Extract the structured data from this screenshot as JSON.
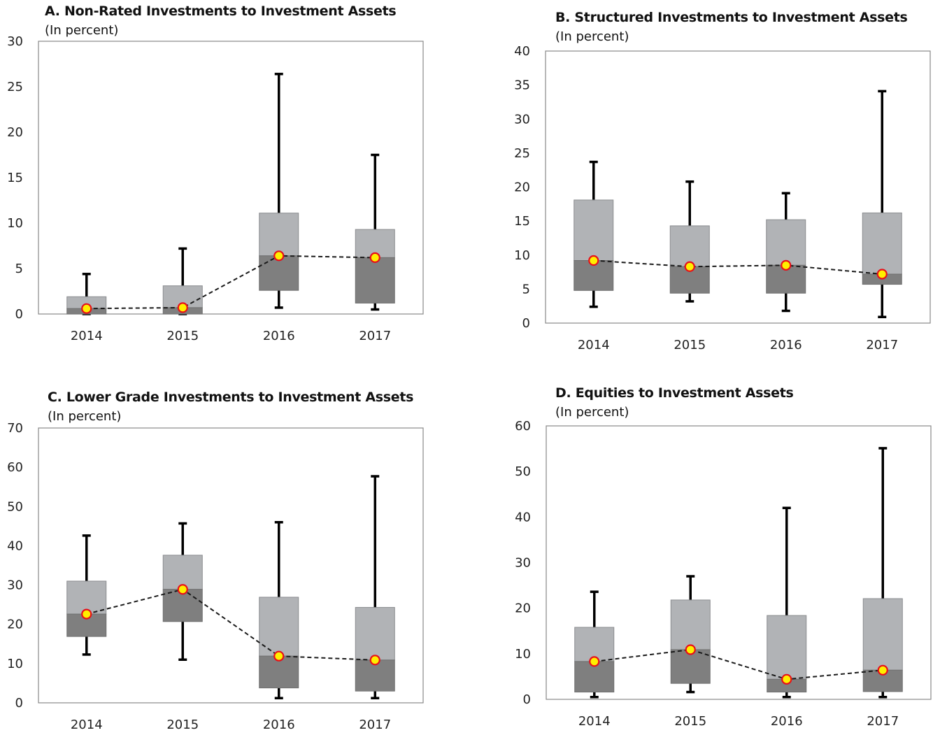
{
  "colors": {
    "upper_box": "#b1b3b6",
    "lower_box": "#7f7f7f",
    "whisker": "#000000",
    "median_fill": "#ffef00",
    "median_stroke": "#e8101a",
    "median_line": "#1a1a1a",
    "frame": "#888888"
  },
  "chart_data": [
    {
      "type": "box",
      "title": "A. Non-Rated Investments to Investment Assets",
      "subtitle": "(In percent)",
      "categories": [
        "2014",
        "2015",
        "2016",
        "2017"
      ],
      "ylim": [
        0,
        30
      ],
      "yticks": [
        0,
        5,
        10,
        15,
        20,
        25,
        30
      ],
      "boxes": [
        {
          "min": 0,
          "q1": 0,
          "median": 0.6,
          "q3": 1.9,
          "max": 4.4
        },
        {
          "min": 0,
          "q1": 0,
          "median": 0.7,
          "q3": 3.1,
          "max": 7.2
        },
        {
          "min": 0.7,
          "q1": 2.6,
          "median": 6.4,
          "q3": 11.1,
          "max": 26.4
        },
        {
          "min": 0.5,
          "q1": 1.2,
          "median": 6.2,
          "q3": 9.3,
          "max": 17.5
        }
      ]
    },
    {
      "type": "box",
      "title": "B. Structured Investments to Investment Assets",
      "subtitle": "(In percent)",
      "categories": [
        "2014",
        "2015",
        "2016",
        "2017"
      ],
      "ylim": [
        0,
        40
      ],
      "yticks": [
        0,
        5,
        10,
        15,
        20,
        25,
        30,
        35,
        40
      ],
      "boxes": [
        {
          "min": 2.4,
          "q1": 4.8,
          "median": 9.2,
          "q3": 18.1,
          "max": 23.7
        },
        {
          "min": 3.2,
          "q1": 4.4,
          "median": 8.3,
          "q3": 14.3,
          "max": 20.8
        },
        {
          "min": 1.8,
          "q1": 4.4,
          "median": 8.5,
          "q3": 15.2,
          "max": 19.1
        },
        {
          "min": 0.9,
          "q1": 5.7,
          "median": 7.2,
          "q3": 16.2,
          "max": 34.1
        }
      ]
    },
    {
      "type": "box",
      "title": "C. Lower Grade Investments to Investment Assets",
      "subtitle": "(In percent)",
      "categories": [
        "2014",
        "2015",
        "2016",
        "2017"
      ],
      "ylim": [
        0,
        70
      ],
      "yticks": [
        0,
        10,
        20,
        30,
        40,
        50,
        60,
        70
      ],
      "boxes": [
        {
          "min": 12.3,
          "q1": 16.9,
          "median": 22.6,
          "q3": 31.0,
          "max": 42.6
        },
        {
          "min": 11.0,
          "q1": 20.7,
          "median": 28.9,
          "q3": 37.6,
          "max": 45.7
        },
        {
          "min": 1.2,
          "q1": 3.8,
          "median": 11.9,
          "q3": 26.9,
          "max": 46.0
        },
        {
          "min": 1.2,
          "q1": 3.0,
          "median": 10.9,
          "q3": 24.3,
          "max": 57.7
        }
      ]
    },
    {
      "type": "box",
      "title": "D. Equities to Investment Assets",
      "subtitle": "(In percent)",
      "categories": [
        "2014",
        "2015",
        "2016",
        "2017"
      ],
      "ylim": [
        0,
        60
      ],
      "yticks": [
        0,
        10,
        20,
        30,
        40,
        50,
        60
      ],
      "boxes": [
        {
          "min": 0.5,
          "q1": 1.6,
          "median": 8.3,
          "q3": 15.8,
          "max": 23.6
        },
        {
          "min": 1.6,
          "q1": 3.5,
          "median": 10.9,
          "q3": 21.8,
          "max": 27.0
        },
        {
          "min": 0.5,
          "q1": 1.6,
          "median": 4.4,
          "q3": 18.4,
          "max": 42.0
        },
        {
          "min": 0.5,
          "q1": 1.7,
          "median": 6.4,
          "q3": 22.1,
          "max": 55.1
        }
      ]
    }
  ]
}
